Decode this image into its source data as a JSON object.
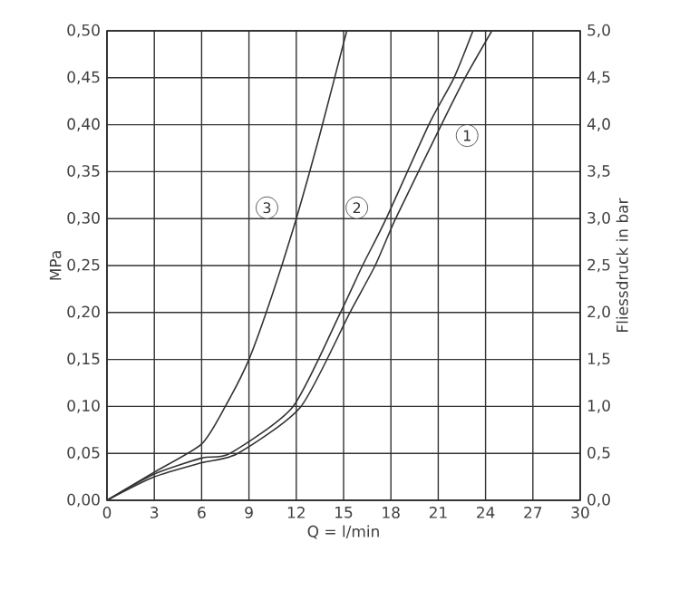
{
  "chart_data": {
    "type": "line",
    "xlabel": "Q = l/min",
    "ylabel": "MPa",
    "y2label": "Fliessdruck in bar",
    "xlim": [
      0,
      30
    ],
    "xticks": [
      0,
      3,
      6,
      9,
      12,
      15,
      18,
      21,
      24,
      27,
      30
    ],
    "ylim": [
      0,
      0.5
    ],
    "yticks": [
      {
        "value": 0,
        "label": "0,00"
      },
      {
        "value": 0.05,
        "label": "0,05"
      },
      {
        "value": 0.1,
        "label": "0,10"
      },
      {
        "value": 0.15,
        "label": "0,15"
      },
      {
        "value": 0.2,
        "label": "0,20"
      },
      {
        "value": 0.25,
        "label": "0,25"
      },
      {
        "value": 0.3,
        "label": "0,30"
      },
      {
        "value": 0.35,
        "label": "0,35"
      },
      {
        "value": 0.4,
        "label": "0,40"
      },
      {
        "value": 0.45,
        "label": "0,45"
      },
      {
        "value": 0.5,
        "label": "0,50"
      }
    ],
    "y2lim": [
      0,
      5
    ],
    "y2ticks": [
      {
        "value": 0,
        "label": "0,0"
      },
      {
        "value": 0.5,
        "label": "0,5"
      },
      {
        "value": 1,
        "label": "1,0"
      },
      {
        "value": 1.5,
        "label": "1,5"
      },
      {
        "value": 2,
        "label": "2,0"
      },
      {
        "value": 2.5,
        "label": "2,5"
      },
      {
        "value": 3,
        "label": "3,0"
      },
      {
        "value": 3.5,
        "label": "3,5"
      },
      {
        "value": 4,
        "label": "4,0"
      },
      {
        "value": 4.5,
        "label": "4,5"
      },
      {
        "value": 5,
        "label": "5,0"
      }
    ],
    "grid": true,
    "series": [
      {
        "name": "1",
        "color": "#333333",
        "x": [
          0,
          3,
          6,
          8.3,
          12.3,
          15.4,
          17,
          18.3,
          21.2,
          22.7,
          24.4
        ],
        "values": [
          0,
          0.025,
          0.04,
          0.05,
          0.1,
          0.2,
          0.25,
          0.3,
          0.4,
          0.45,
          0.5
        ]
      },
      {
        "name": "2",
        "color": "#333333",
        "x": [
          0,
          3,
          6,
          7.8,
          11.8,
          14.8,
          16.2,
          17.7,
          20.4,
          22,
          23.2
        ],
        "values": [
          0,
          0.028,
          0.045,
          0.05,
          0.1,
          0.2,
          0.25,
          0.3,
          0.4,
          0.45,
          0.5
        ]
      },
      {
        "name": "3",
        "color": "#333333",
        "x": [
          0,
          3,
          6,
          7.5,
          9,
          10.5,
          12,
          13.5,
          15.2
        ],
        "values": [
          0,
          0.03,
          0.06,
          0.1,
          0.15,
          0.22,
          0.3,
          0.39,
          0.5
        ]
      }
    ]
  }
}
